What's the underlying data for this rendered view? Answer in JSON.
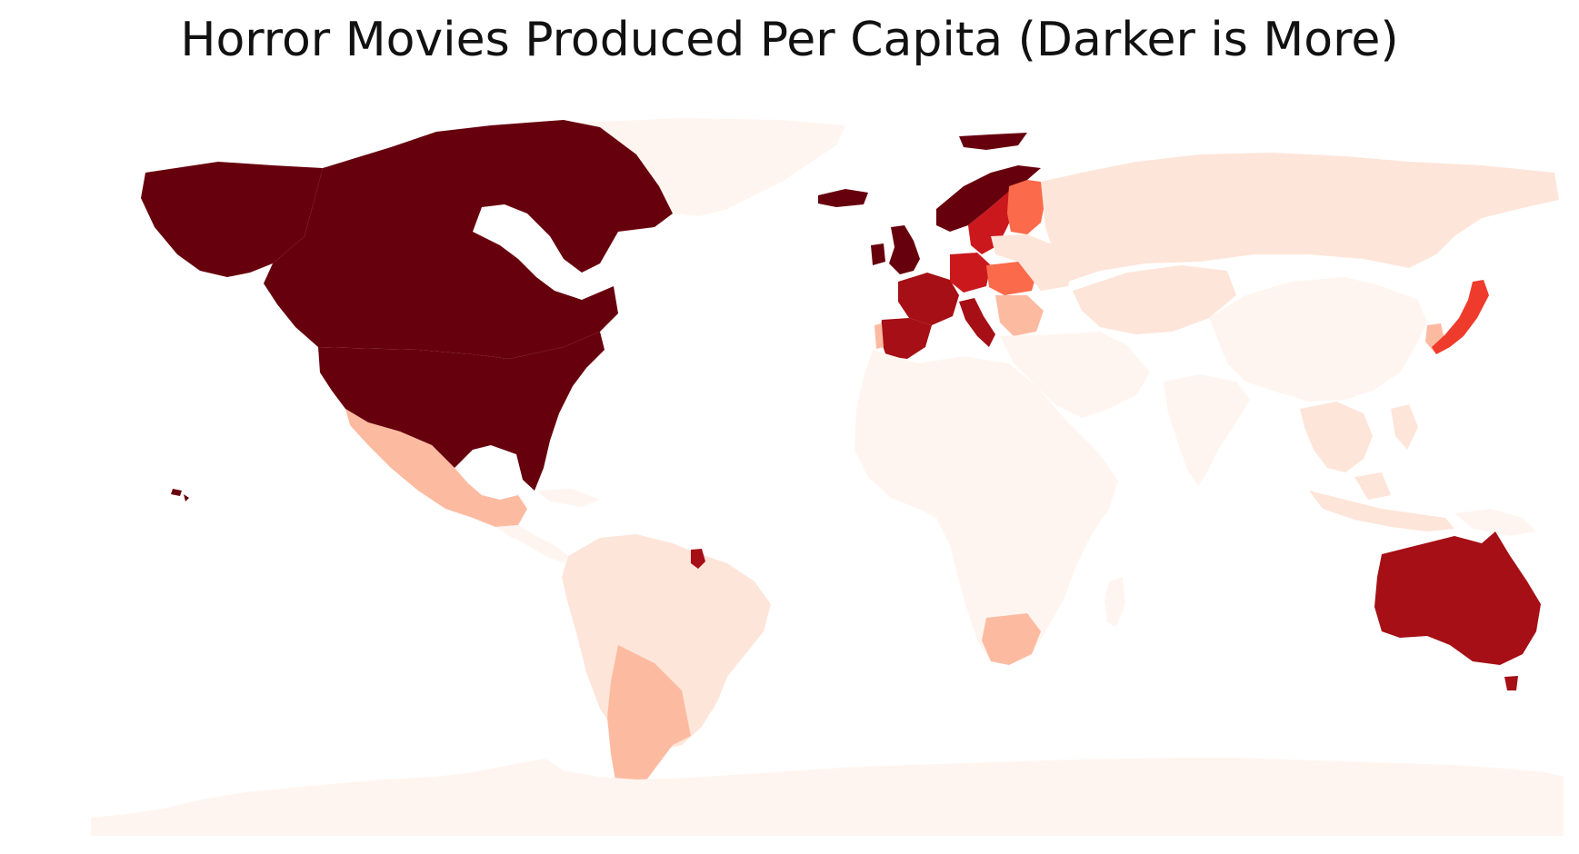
{
  "title": "Horror Movies Produced Per Capita (Darker is More)",
  "map": {
    "type": "choropleth",
    "projection": "plate-carree",
    "axes_visible": false,
    "color_scale": "Reds",
    "scale_note": "darker is more",
    "levels": {
      "L1": "#fff5f0",
      "L2": "#fee5d9",
      "L3": "#fcbba1",
      "L4": "#fb6a4a",
      "L5": "#ef3b2c",
      "L6": "#cb181d",
      "L7": "#a50f15",
      "L8": "#67000d"
    },
    "regions": [
      {
        "id": "greenland",
        "level": "L1"
      },
      {
        "id": "canada",
        "level": "L8"
      },
      {
        "id": "alaska",
        "level": "L8"
      },
      {
        "id": "usa",
        "level": "L8"
      },
      {
        "id": "hawaii",
        "level": "L8"
      },
      {
        "id": "mexico",
        "level": "L3"
      },
      {
        "id": "central-america",
        "level": "L1"
      },
      {
        "id": "french-guiana",
        "level": "L7"
      },
      {
        "id": "south-america-north",
        "level": "L2"
      },
      {
        "id": "brazil-south",
        "level": "L2"
      },
      {
        "id": "argentina-chile",
        "level": "L3"
      },
      {
        "id": "iceland",
        "level": "L8"
      },
      {
        "id": "svalbard",
        "level": "L8"
      },
      {
        "id": "norway",
        "level": "L8"
      },
      {
        "id": "sweden",
        "level": "L6"
      },
      {
        "id": "finland",
        "level": "L4"
      },
      {
        "id": "uk-ireland",
        "level": "L8"
      },
      {
        "id": "france",
        "level": "L7"
      },
      {
        "id": "spain",
        "level": "L7"
      },
      {
        "id": "portugal",
        "level": "L3"
      },
      {
        "id": "germany",
        "level": "L6"
      },
      {
        "id": "italy",
        "level": "L7"
      },
      {
        "id": "central-europe",
        "level": "L4"
      },
      {
        "id": "balkans",
        "level": "L3"
      },
      {
        "id": "eastern-europe",
        "level": "L2"
      },
      {
        "id": "russia",
        "level": "L2"
      },
      {
        "id": "central-asia",
        "level": "L2"
      },
      {
        "id": "middle-east",
        "level": "L1"
      },
      {
        "id": "africa",
        "level": "L1"
      },
      {
        "id": "south-africa",
        "level": "L3"
      },
      {
        "id": "madagascar",
        "level": "L1"
      },
      {
        "id": "india",
        "level": "L1"
      },
      {
        "id": "china",
        "level": "L1"
      },
      {
        "id": "korea",
        "level": "L3"
      },
      {
        "id": "japan",
        "level": "L5"
      },
      {
        "id": "southeast-asia",
        "level": "L2"
      },
      {
        "id": "indonesia",
        "level": "L2"
      },
      {
        "id": "papua",
        "level": "L1"
      },
      {
        "id": "australia",
        "level": "L7"
      },
      {
        "id": "tasmania",
        "level": "L7"
      },
      {
        "id": "new-zealand",
        "level": "L7"
      },
      {
        "id": "antarctica",
        "level": "L1"
      }
    ]
  }
}
